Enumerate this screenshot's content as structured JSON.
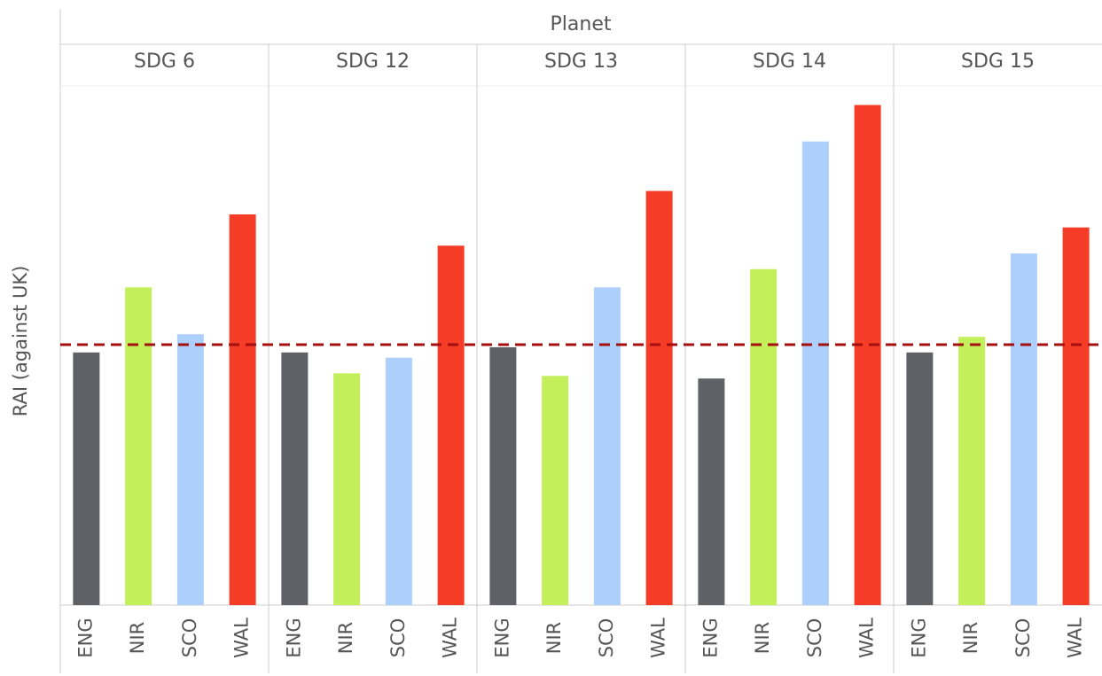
{
  "chart_data": {
    "type": "bar",
    "title": "Planet",
    "y_label": "RAI (against UK)",
    "categories": [
      "ENG",
      "NIR",
      "SCO",
      "WAL"
    ],
    "colors": [
      "#5f6166",
      "#c3f05a",
      "#acd0fb",
      "#f43c26"
    ],
    "panels": [
      {
        "name": "SDG 6",
        "values": [
          0.97,
          1.22,
          1.04,
          1.5
        ]
      },
      {
        "name": "SDG 12",
        "values": [
          0.97,
          0.89,
          0.95,
          1.38
        ]
      },
      {
        "name": "SDG 13",
        "values": [
          0.99,
          0.88,
          1.22,
          1.59
        ]
      },
      {
        "name": "SDG 14",
        "values": [
          0.87,
          1.29,
          1.78,
          1.92
        ]
      },
      {
        "name": "SDG 15",
        "values": [
          0.97,
          1.03,
          1.35,
          1.45
        ]
      }
    ],
    "reference_line": 1,
    "reference_color": "#a50f0f",
    "ylim": [
      0,
      2
    ]
  }
}
